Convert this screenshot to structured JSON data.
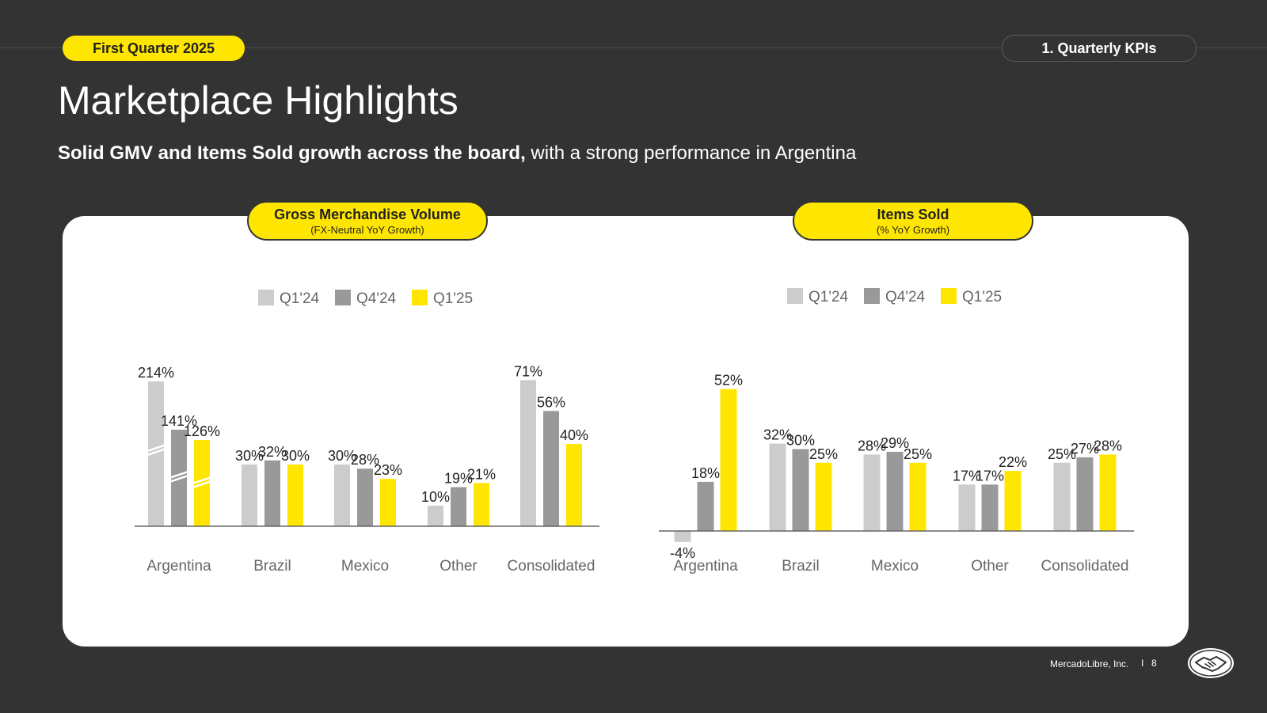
{
  "header": {
    "quarter_label": "First Quarter 2025",
    "section_label": "1. Quarterly KPIs",
    "title": "Marketplace Highlights",
    "subtitle_bold": "Solid GMV and Items Sold growth across the board,",
    "subtitle_rest": " with a strong performance in Argentina"
  },
  "footer": {
    "company": "MercadoLibre, Inc.",
    "separator": "I",
    "page_number": "8"
  },
  "colors": {
    "background": "#333333",
    "accent": "#FFE600",
    "series_q124": "#CCCCCC",
    "series_q424": "#999999",
    "series_q125": "#FFE600"
  },
  "chart_data": [
    {
      "type": "bar",
      "title": "Gross Merchandise Volume",
      "subtitle": "(FX-Neutral YoY Growth)",
      "categories": [
        "Argentina",
        "Brazil",
        "Mexico",
        "Other",
        "Consolidated"
      ],
      "series": [
        {
          "name": "Q1'24",
          "values": [
            214,
            30,
            30,
            10,
            71
          ],
          "labels": [
            "214%",
            "30%",
            "30%",
            "10%",
            "71%"
          ]
        },
        {
          "name": "Q4'24",
          "values": [
            141,
            32,
            28,
            19,
            56
          ],
          "labels": [
            "141%",
            "32%",
            "28%",
            "19%",
            "56%"
          ]
        },
        {
          "name": "Q1'25",
          "values": [
            126,
            30,
            23,
            21,
            40
          ],
          "labels": [
            "126%",
            "30%",
            "23%",
            "21%",
            "40%"
          ]
        }
      ],
      "axis_break": "Argentina bars (broken scale)",
      "legend_position": "top-center",
      "grid": false
    },
    {
      "type": "bar",
      "title": "Items Sold",
      "subtitle": "(% YoY Growth)",
      "categories": [
        "Argentina",
        "Brazil",
        "Mexico",
        "Other",
        "Consolidated"
      ],
      "series": [
        {
          "name": "Q1'24",
          "values": [
            -4,
            32,
            28,
            17,
            25
          ],
          "labels": [
            "-4%",
            "32%",
            "28%",
            "17%",
            "25%"
          ]
        },
        {
          "name": "Q4'24",
          "values": [
            18,
            30,
            29,
            17,
            27
          ],
          "labels": [
            "18%",
            "30%",
            "29%",
            "17%",
            "27%"
          ]
        },
        {
          "name": "Q1'25",
          "values": [
            52,
            25,
            25,
            22,
            28
          ],
          "labels": [
            "52%",
            "25%",
            "25%",
            "22%",
            "28%"
          ]
        }
      ],
      "legend_position": "top-center",
      "grid": false
    }
  ]
}
